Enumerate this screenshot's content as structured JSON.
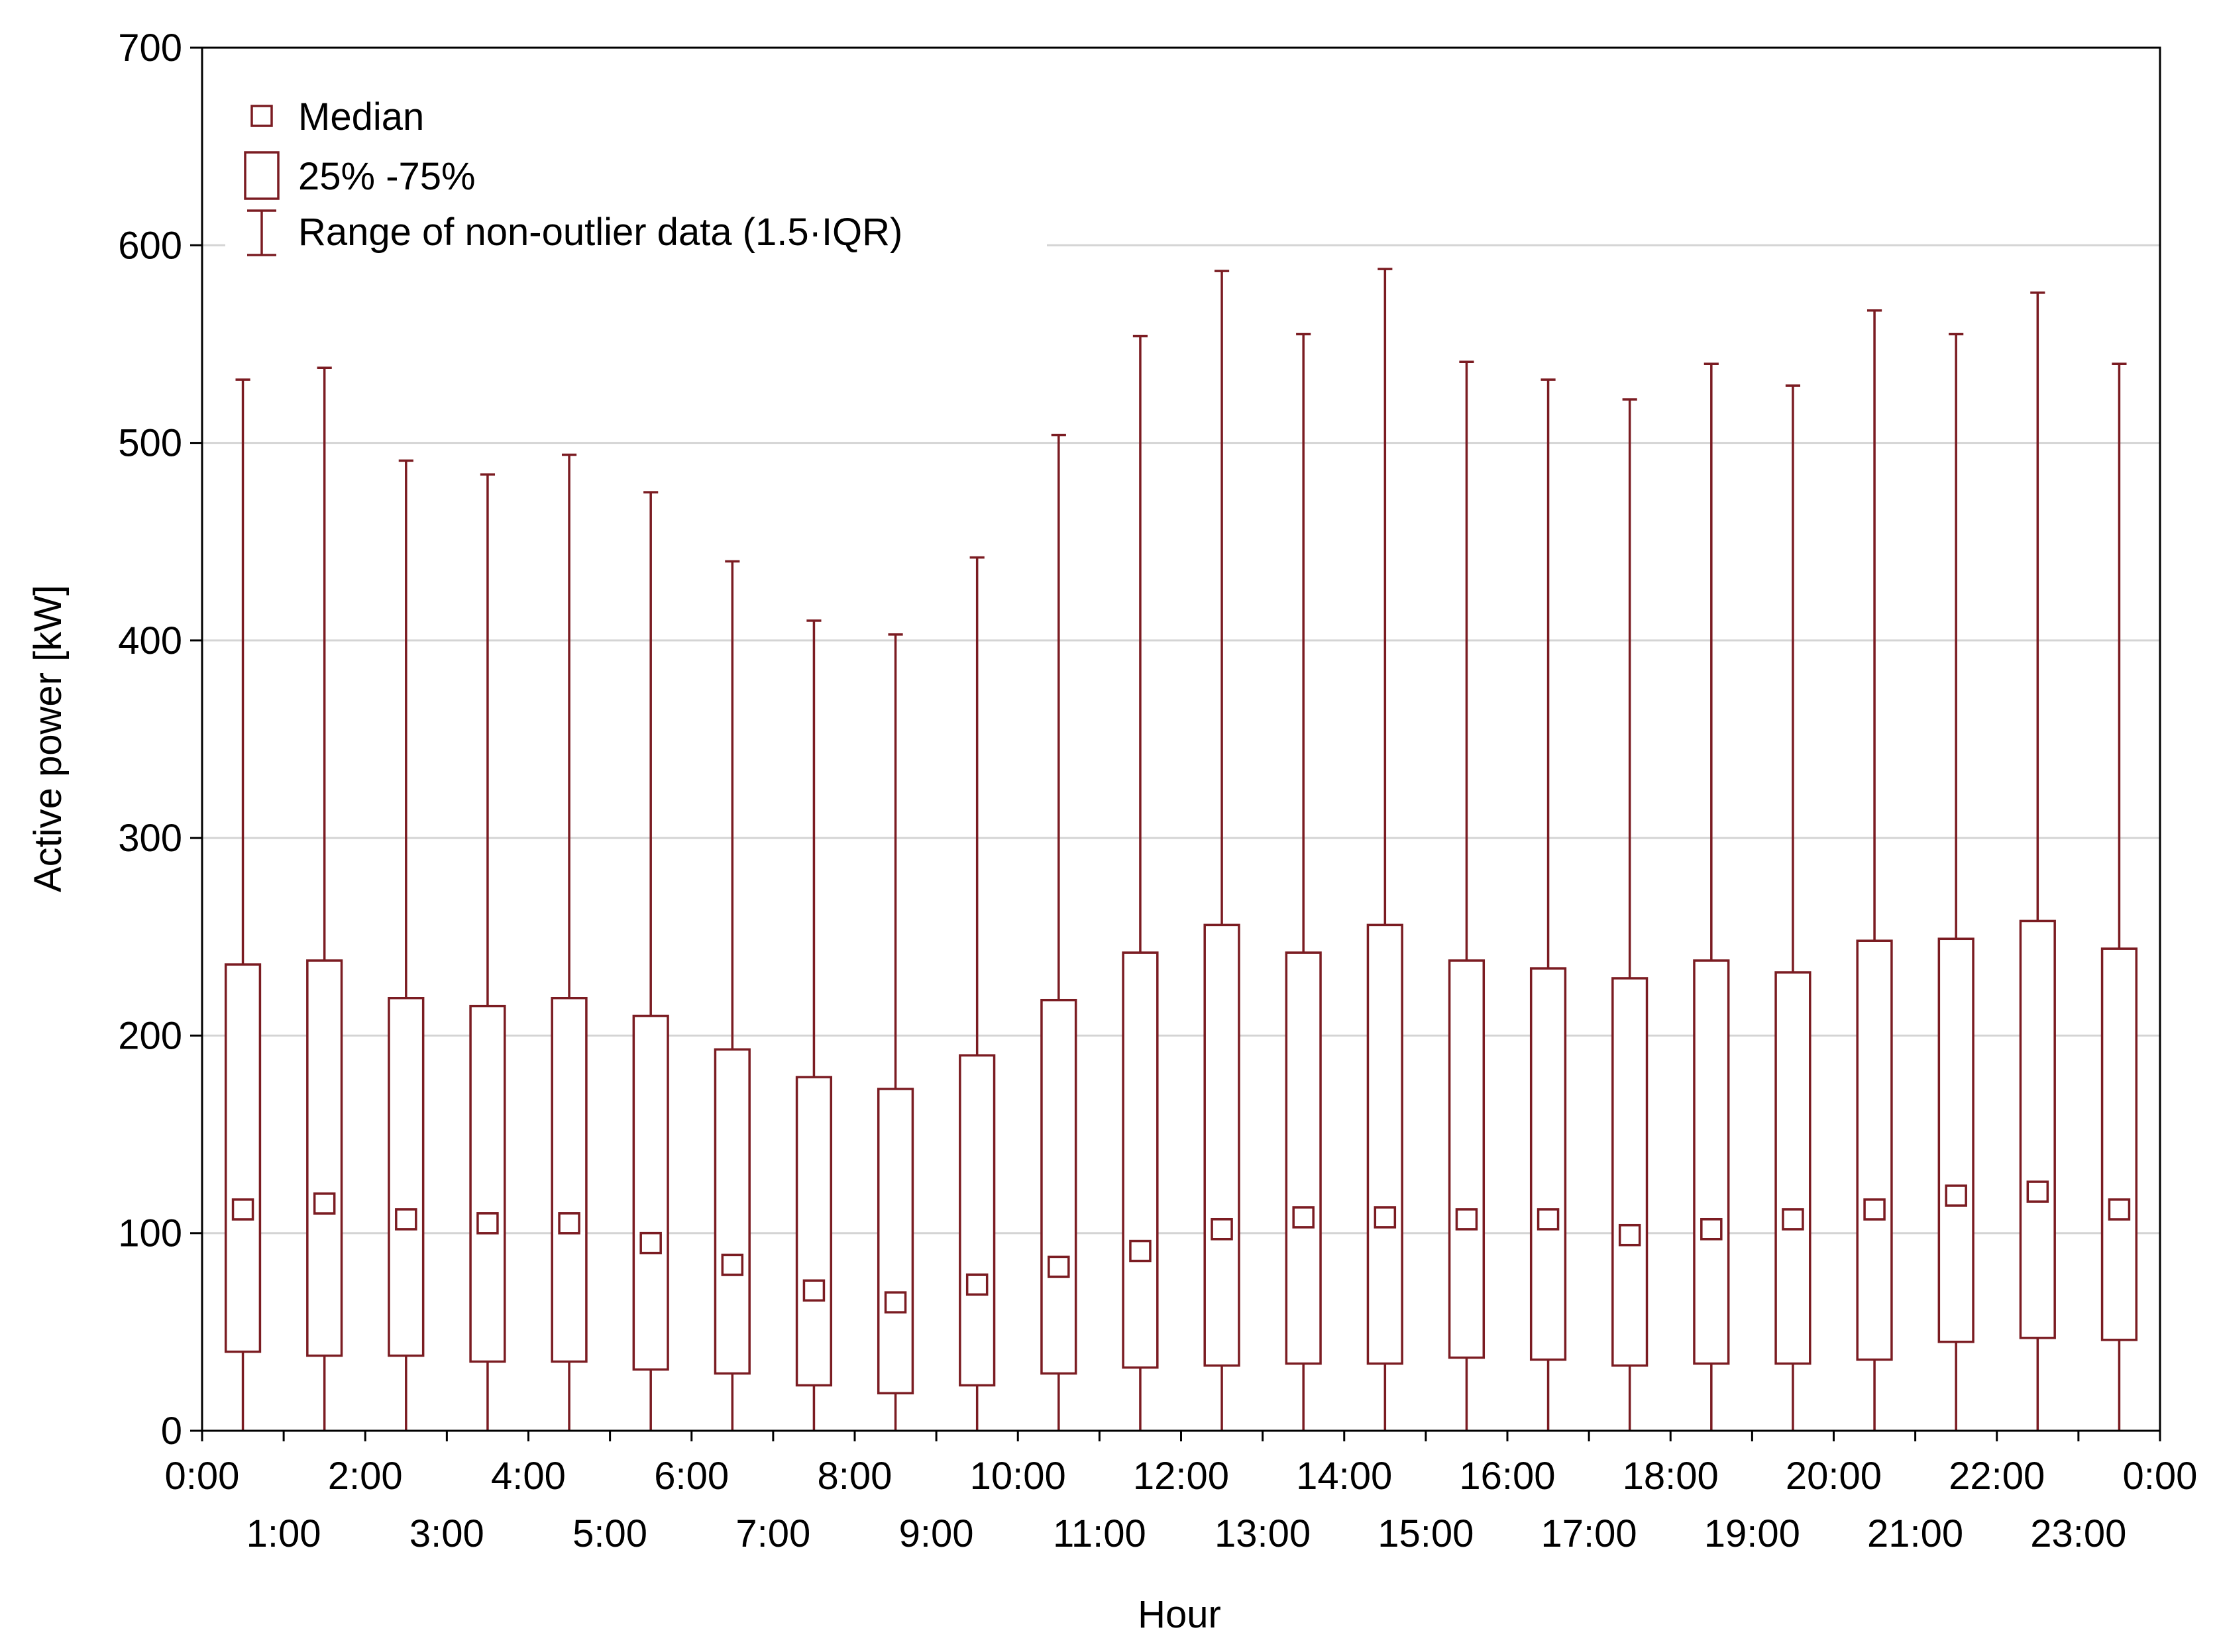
{
  "chart_data": {
    "type": "boxplot",
    "xlabel": "Hour",
    "ylabel": "Active power [kW]",
    "ylim": [
      0,
      700
    ],
    "yticks": [
      0,
      100,
      200,
      300,
      400,
      500,
      600,
      700
    ],
    "grid": "horizontal",
    "colors": {
      "box": "#7b1c22",
      "grid": "#d4d4d4",
      "axis": "#000000"
    },
    "categories": [
      "0:00",
      "1:00",
      "2:00",
      "3:00",
      "4:00",
      "5:00",
      "6:00",
      "7:00",
      "8:00",
      "9:00",
      "10:00",
      "11:00",
      "12:00",
      "13:00",
      "14:00",
      "15:00",
      "16:00",
      "17:00",
      "18:00",
      "19:00",
      "20:00",
      "21:00",
      "22:00",
      "23:00"
    ],
    "xtick_labels_top": [
      "0:00",
      "2:00",
      "4:00",
      "6:00",
      "8:00",
      "10:00",
      "12:00",
      "14:00",
      "16:00",
      "18:00",
      "20:00",
      "22:00",
      "0:00"
    ],
    "xtick_labels_bottom": [
      "1:00",
      "3:00",
      "5:00",
      "7:00",
      "9:00",
      "11:00",
      "13:00",
      "15:00",
      "17:00",
      "19:00",
      "21:00",
      "23:00"
    ],
    "median": [
      112,
      115,
      107,
      105,
      105,
      95,
      84,
      71,
      65,
      74,
      83,
      91,
      102,
      108,
      108,
      107,
      107,
      99,
      102,
      107,
      112,
      119,
      121,
      112
    ],
    "q1": [
      40,
      38,
      38,
      35,
      35,
      31,
      29,
      23,
      19,
      23,
      29,
      32,
      33,
      34,
      34,
      37,
      36,
      33,
      34,
      34,
      36,
      45,
      47,
      46
    ],
    "q3": [
      236,
      238,
      219,
      215,
      219,
      210,
      193,
      179,
      173,
      190,
      218,
      242,
      256,
      242,
      256,
      238,
      234,
      229,
      238,
      232,
      248,
      249,
      258,
      244
    ],
    "whisker_low": [
      0,
      0,
      0,
      0,
      0,
      0,
      0,
      0,
      0,
      0,
      0,
      0,
      0,
      0,
      0,
      0,
      0,
      0,
      0,
      0,
      0,
      0,
      0,
      0
    ],
    "whisker_high": [
      532,
      538,
      491,
      484,
      494,
      475,
      440,
      410,
      403,
      442,
      504,
      554,
      587,
      555,
      588,
      541,
      532,
      522,
      540,
      529,
      567,
      555,
      576,
      540
    ],
    "legend": {
      "position": "top-left",
      "items": [
        {
          "symbol": "median-square",
          "label": "Median"
        },
        {
          "symbol": "box",
          "label": "25% -75%"
        },
        {
          "symbol": "whisker",
          "label": "Range of non-outlier data (1.5·IQR)"
        }
      ]
    }
  }
}
